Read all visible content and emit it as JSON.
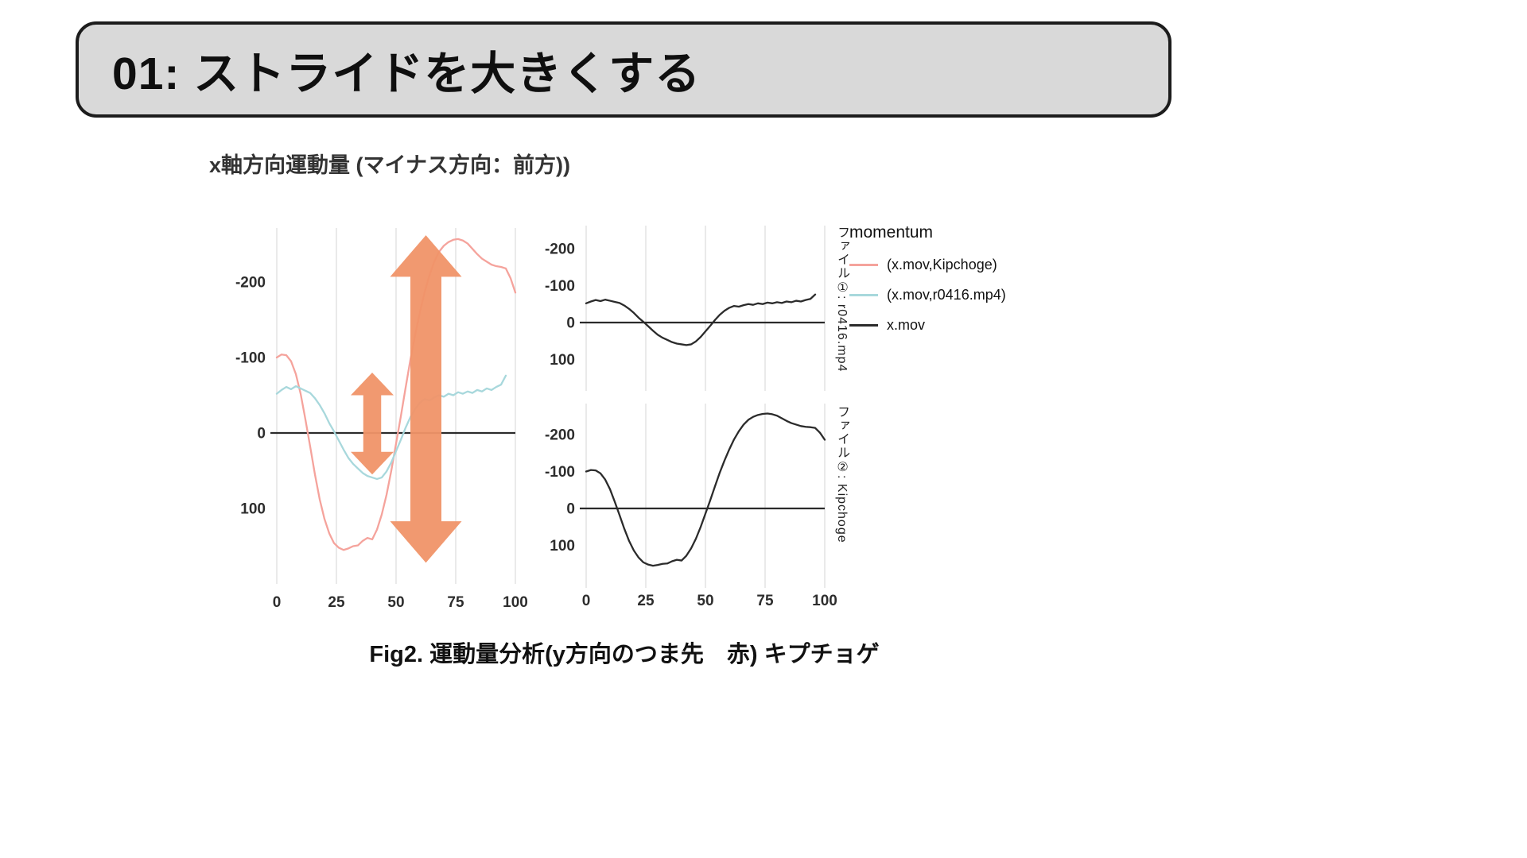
{
  "slide": {
    "title": "01: ストライドを大きくする",
    "caption": "Fig2. 運動量分析(y方向のつま先　赤) キプチョゲ"
  },
  "legend": {
    "title": "momentum",
    "entries": [
      {
        "label": "(x.mov,Kipchoge)",
        "color": "#f5a39c"
      },
      {
        "label": "(x.mov,r0416.mp4)",
        "color": "#a8d8dc"
      },
      {
        "label": "x.mov",
        "color": "#2b2b2b"
      }
    ]
  },
  "chart_data": {
    "type": "line",
    "title": "x軸方向運動量 (マイナス方向：前方))",
    "xlabel": "",
    "ylabel": "",
    "x_ticks": [
      0,
      25,
      50,
      75,
      100
    ],
    "y_ticks": [
      -200,
      -100,
      0,
      100
    ],
    "xlim": [
      0,
      100
    ],
    "ylim": [
      -270,
      200
    ],
    "y_axis_inverted": true,
    "grid": "vertical-only",
    "legend_position": "right",
    "series": [
      {
        "name": "(x.mov,Kipchoge)",
        "color": "#f5a39c",
        "points": [
          [
            0,
            -100
          ],
          [
            2,
            -104
          ],
          [
            4,
            -103
          ],
          [
            6,
            -95
          ],
          [
            8,
            -78
          ],
          [
            10,
            -52
          ],
          [
            12,
            -18
          ],
          [
            14,
            18
          ],
          [
            16,
            55
          ],
          [
            18,
            88
          ],
          [
            20,
            114
          ],
          [
            22,
            133
          ],
          [
            24,
            146
          ],
          [
            26,
            152
          ],
          [
            28,
            155
          ],
          [
            30,
            153
          ],
          [
            32,
            150
          ],
          [
            34,
            149
          ],
          [
            36,
            143
          ],
          [
            38,
            139
          ],
          [
            40,
            141
          ],
          [
            42,
            128
          ],
          [
            44,
            108
          ],
          [
            46,
            82
          ],
          [
            48,
            50
          ],
          [
            50,
            14
          ],
          [
            52,
            -22
          ],
          [
            54,
            -60
          ],
          [
            56,
            -97
          ],
          [
            58,
            -130
          ],
          [
            60,
            -160
          ],
          [
            62,
            -187
          ],
          [
            64,
            -209
          ],
          [
            66,
            -227
          ],
          [
            68,
            -240
          ],
          [
            70,
            -248
          ],
          [
            72,
            -253
          ],
          [
            74,
            -256
          ],
          [
            76,
            -257
          ],
          [
            78,
            -255
          ],
          [
            80,
            -251
          ],
          [
            82,
            -244
          ],
          [
            84,
            -237
          ],
          [
            86,
            -231
          ],
          [
            88,
            -227
          ],
          [
            90,
            -223
          ],
          [
            92,
            -221
          ],
          [
            94,
            -220
          ],
          [
            96,
            -218
          ],
          [
            98,
            -205
          ],
          [
            100,
            -186
          ]
        ]
      },
      {
        "name": "(x.mov,r0416.mp4)",
        "color": "#a8d8dc",
        "points": [
          [
            0,
            -52
          ],
          [
            2,
            -57
          ],
          [
            4,
            -61
          ],
          [
            6,
            -58
          ],
          [
            8,
            -62
          ],
          [
            10,
            -59
          ],
          [
            12,
            -56
          ],
          [
            14,
            -53
          ],
          [
            16,
            -46
          ],
          [
            18,
            -37
          ],
          [
            20,
            -26
          ],
          [
            22,
            -13
          ],
          [
            24,
            -2
          ],
          [
            26,
            10
          ],
          [
            28,
            22
          ],
          [
            30,
            33
          ],
          [
            32,
            41
          ],
          [
            34,
            47
          ],
          [
            36,
            53
          ],
          [
            38,
            57
          ],
          [
            40,
            59
          ],
          [
            42,
            61
          ],
          [
            44,
            59
          ],
          [
            46,
            51
          ],
          [
            48,
            39
          ],
          [
            50,
            24
          ],
          [
            52,
            9
          ],
          [
            54,
            -7
          ],
          [
            56,
            -21
          ],
          [
            58,
            -32
          ],
          [
            60,
            -40
          ],
          [
            62,
            -45
          ],
          [
            64,
            -43
          ],
          [
            66,
            -47
          ],
          [
            68,
            -50
          ],
          [
            70,
            -48
          ],
          [
            72,
            -52
          ],
          [
            74,
            -50
          ],
          [
            76,
            -54
          ],
          [
            78,
            -52
          ],
          [
            80,
            -55
          ],
          [
            82,
            -53
          ],
          [
            84,
            -57
          ],
          [
            86,
            -55
          ],
          [
            88,
            -59
          ],
          [
            90,
            -57
          ],
          [
            92,
            -61
          ],
          [
            94,
            -64
          ],
          [
            96,
            -76
          ]
        ]
      }
    ],
    "panels": [
      {
        "id": "combined",
        "right_label": "",
        "series": [
          "(x.mov,Kipchoge)",
          "(x.mov,r0416.mp4)"
        ],
        "show_x_labels": true
      },
      {
        "id": "file1",
        "right_label": "ファイル①: r0416.mp4",
        "series": [
          "(x.mov,r0416.mp4)"
        ],
        "line_color": "#2b2b2b",
        "show_x_labels": false
      },
      {
        "id": "file2",
        "right_label": "ファイル②: Kipchoge",
        "series": [
          "(x.mov,Kipchoge)"
        ],
        "line_color": "#2b2b2b",
        "show_x_labels": true
      }
    ],
    "annotations": [
      {
        "type": "double_arrow",
        "x": 40,
        "y_top": -80,
        "y_bottom": 55,
        "shaft_width": 7.5,
        "head_width": 18,
        "head_height": 30,
        "color": "#f09468"
      },
      {
        "type": "double_arrow",
        "x": 62.5,
        "y_top": -262,
        "y_bottom": 172,
        "shaft_width": 13,
        "head_width": 30,
        "head_height": 55,
        "color": "#f09468"
      }
    ]
  }
}
